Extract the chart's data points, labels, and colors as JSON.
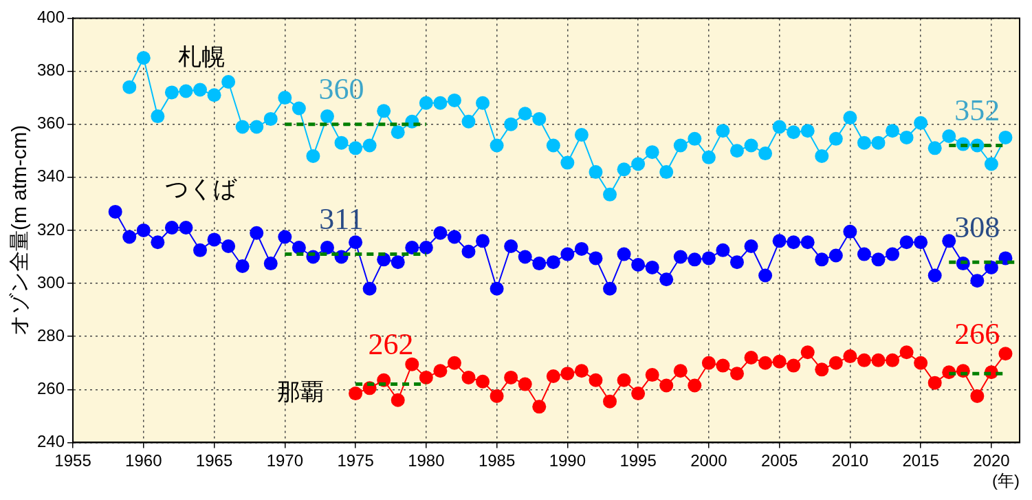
{
  "chart_data": {
    "type": "line",
    "ylabel": "オゾン全量(m atm-cm)",
    "xlabel": "(年)",
    "xlim": [
      1955,
      2022
    ],
    "xticks": [
      1955,
      1960,
      1965,
      1970,
      1975,
      1980,
      1985,
      1990,
      1995,
      2000,
      2005,
      2010,
      2015,
      2020
    ],
    "ylim": [
      240,
      400
    ],
    "yticks": [
      240,
      260,
      280,
      300,
      320,
      340,
      360,
      380,
      400
    ],
    "grid": true,
    "legend": false,
    "marker": "circle",
    "series": [
      {
        "name": "札幌",
        "color": "#00bfff",
        "x": [
          1959,
          1960,
          1961,
          1962,
          1963,
          1964,
          1965,
          1966,
          1967,
          1968,
          1969,
          1970,
          1971,
          1972,
          1973,
          1974,
          1975,
          1976,
          1977,
          1978,
          1979,
          1980,
          1981,
          1982,
          1983,
          1984,
          1985,
          1986,
          1987,
          1988,
          1989,
          1990,
          1991,
          1992,
          1993,
          1994,
          1995,
          1996,
          1997,
          1998,
          1999,
          2000,
          2001,
          2002,
          2003,
          2004,
          2005,
          2006,
          2007,
          2008,
          2009,
          2010,
          2011,
          2012,
          2013,
          2014,
          2015,
          2016,
          2017,
          2018,
          2019,
          2020,
          2021
        ],
        "values": [
          374,
          385,
          363,
          372,
          372.5,
          373,
          371,
          376,
          359,
          359,
          362,
          370,
          366,
          348,
          363,
          353,
          351,
          352,
          365,
          357,
          361,
          368,
          368,
          369,
          361,
          368,
          352,
          360,
          364,
          362,
          352,
          345.5,
          356,
          342,
          333.5,
          343,
          345,
          349.5,
          342,
          352,
          354.5,
          347.5,
          357.5,
          350,
          352,
          349,
          359,
          357,
          357.5,
          348,
          354.5,
          362.5,
          353,
          353,
          357.5,
          355,
          360.5,
          351,
          355.5,
          352.5,
          352,
          345,
          355
        ]
      },
      {
        "name": "つくば",
        "color": "#0000ff",
        "x": [
          1958,
          1959,
          1960,
          1961,
          1962,
          1963,
          1964,
          1965,
          1966,
          1967,
          1968,
          1969,
          1970,
          1971,
          1972,
          1973,
          1974,
          1975,
          1976,
          1977,
          1978,
          1979,
          1980,
          1981,
          1982,
          1983,
          1984,
          1985,
          1986,
          1987,
          1988,
          1989,
          1990,
          1991,
          1992,
          1993,
          1994,
          1995,
          1996,
          1997,
          1998,
          1999,
          2000,
          2001,
          2002,
          2003,
          2004,
          2005,
          2006,
          2007,
          2008,
          2009,
          2010,
          2011,
          2012,
          2013,
          2014,
          2015,
          2016,
          2017,
          2018,
          2019,
          2020,
          2021
        ],
        "values": [
          327,
          317.5,
          320,
          315.5,
          321,
          321,
          312.5,
          316.5,
          314,
          306.5,
          319,
          307.5,
          317.5,
          313.5,
          310,
          313.5,
          310,
          315.5,
          298,
          309,
          308,
          313.5,
          313.5,
          319,
          317.5,
          312,
          316,
          298,
          314,
          310,
          307.5,
          308,
          311,
          313,
          309.5,
          298,
          311,
          307,
          306,
          301.5,
          310,
          309,
          309.5,
          312.5,
          308,
          314,
          303,
          316,
          315.5,
          315.5,
          309,
          310.5,
          319.5,
          311,
          309,
          311,
          315.5,
          315.5,
          303,
          316,
          307.5,
          301,
          306,
          309.5
        ]
      },
      {
        "name": "那覇",
        "color": "#ff0000",
        "x": [
          1975,
          1976,
          1977,
          1978,
          1979,
          1980,
          1981,
          1982,
          1983,
          1984,
          1985,
          1986,
          1987,
          1988,
          1989,
          1990,
          1991,
          1992,
          1993,
          1994,
          1995,
          1996,
          1997,
          1998,
          1999,
          2000,
          2001,
          2002,
          2003,
          2004,
          2005,
          2006,
          2007,
          2008,
          2009,
          2010,
          2011,
          2012,
          2013,
          2014,
          2015,
          2016,
          2017,
          2018,
          2019,
          2020,
          2021
        ],
        "values": [
          258.5,
          260.5,
          263.5,
          256,
          269.5,
          264.5,
          267,
          270,
          264.5,
          263,
          257.5,
          264.5,
          262,
          253.5,
          265,
          266,
          267,
          263.5,
          255.5,
          263.5,
          258.5,
          265.5,
          261.5,
          267,
          261.5,
          270,
          269,
          266,
          272,
          270,
          270.5,
          269,
          274,
          267.5,
          270,
          272.5,
          271,
          271,
          271,
          274,
          270,
          262.5,
          266.5,
          267,
          257.5,
          266.5,
          273.5
        ]
      },
      {
        "color": "#008000",
        "line_style": "dashed",
        "marker": "none",
        "x": [
          1970,
          1980
        ],
        "values": [
          360,
          360
        ]
      },
      {
        "color": "#008000",
        "line_style": "dashed",
        "marker": "none",
        "x": [
          2017,
          2021
        ],
        "values": [
          352,
          352
        ]
      },
      {
        "color": "#008000",
        "line_style": "dashed",
        "marker": "none",
        "x": [
          1970,
          1980
        ],
        "values": [
          311,
          311
        ]
      },
      {
        "color": "#008000",
        "line_style": "dashed",
        "marker": "none",
        "x": [
          2017,
          2022
        ],
        "values": [
          308,
          308
        ]
      },
      {
        "color": "#008000",
        "line_style": "dashed",
        "marker": "none",
        "x": [
          1975,
          1980
        ],
        "values": [
          262,
          262
        ]
      },
      {
        "color": "#008000",
        "line_style": "dashed",
        "marker": "none",
        "x": [
          2017,
          2021
        ],
        "values": [
          266,
          266
        ]
      }
    ],
    "annotations": [
      {
        "text": "360",
        "x": 1974,
        "y": 360
      },
      {
        "text": "352",
        "x": 2019,
        "y": 352
      },
      {
        "text": "311",
        "x": 1974,
        "y": 311
      },
      {
        "text": "308",
        "x": 2019,
        "y": 308
      },
      {
        "text": "262",
        "x": 1977.5,
        "y": 262
      },
      {
        "text": "266",
        "x": 2019,
        "y": 266
      }
    ]
  }
}
